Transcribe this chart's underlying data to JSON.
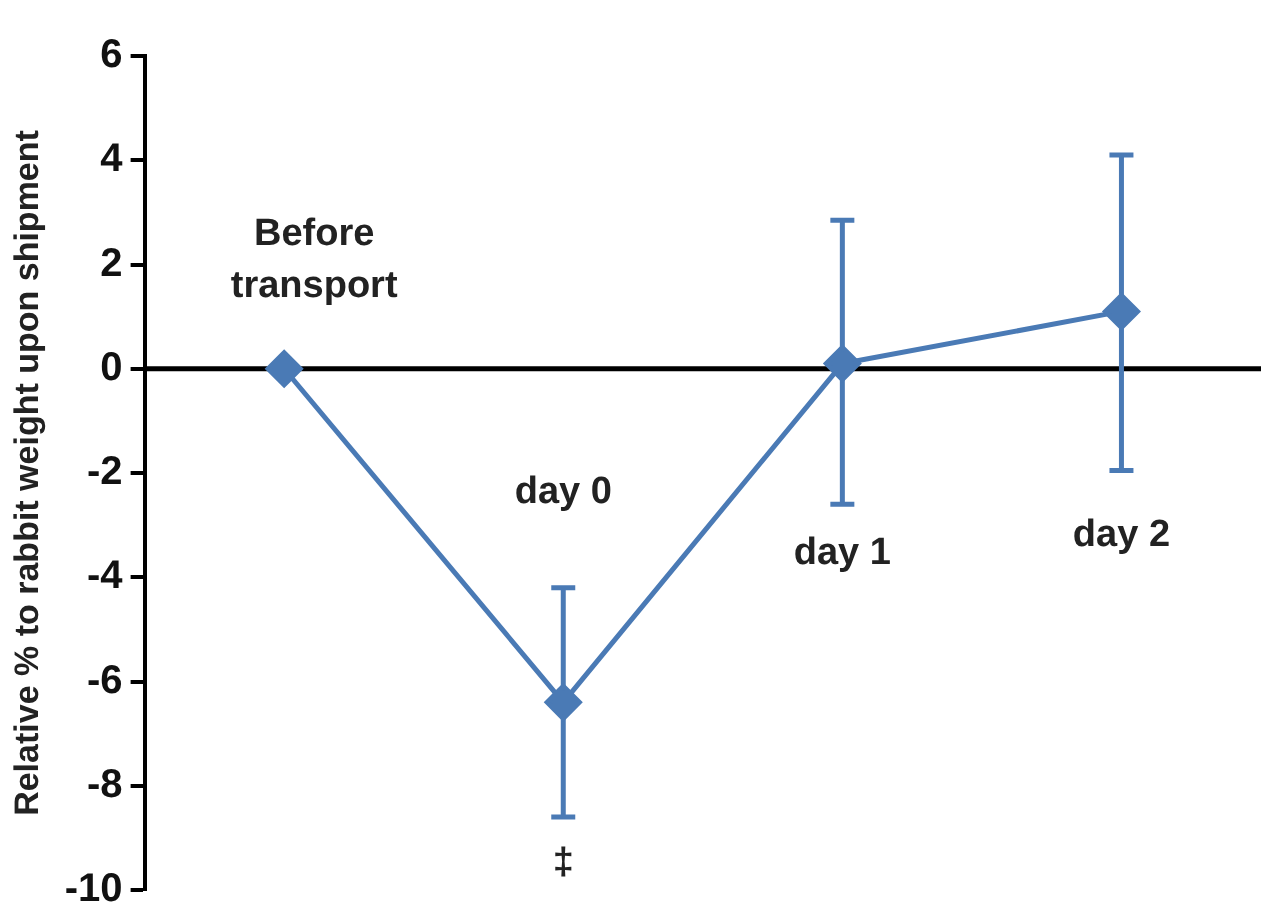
{
  "chart_data": {
    "type": "line",
    "ylabel": "Relative % to rabbit weight upon shipment",
    "categories": [
      "Before transport",
      "day 0",
      "day 1",
      "day 2"
    ],
    "series": [
      {
        "color": "#4a7ab5",
        "values": [
          0,
          -6.4,
          0.1,
          1.1
        ],
        "errors": [
          null,
          [
            -8.6,
            -4.2
          ],
          [
            -2.6,
            2.85
          ],
          [
            -1.95,
            4.1
          ]
        ]
      }
    ],
    "ylim": [
      -10,
      6
    ],
    "yticks": [
      -10,
      -8,
      -6,
      -4,
      -2,
      0,
      2,
      4,
      6
    ],
    "grid": false,
    "legend": false,
    "marker": "diamond",
    "line_style": "solid",
    "ref_lines": [
      {
        "axis": "y",
        "value": 0,
        "color": "#000000"
      }
    ],
    "annotations": [
      "‡"
    ]
  }
}
